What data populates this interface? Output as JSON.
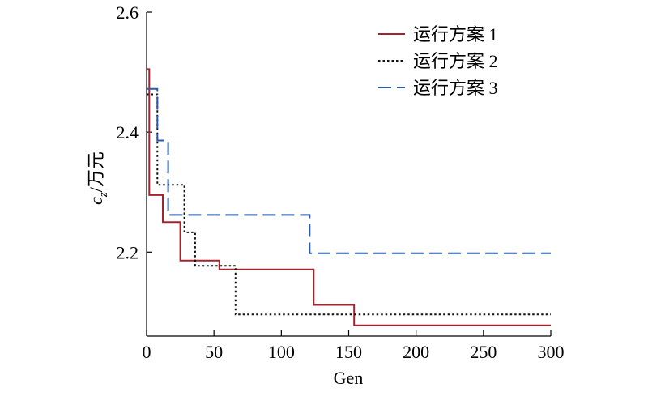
{
  "chart_data": {
    "type": "line",
    "xlabel": "Gen",
    "ylabel": "c_z/万元",
    "ylabel_main": "c",
    "ylabel_sub": "z",
    "ylabel_rest": "/万元",
    "xlim": [
      0,
      300
    ],
    "ylim": [
      2.06,
      2.6
    ],
    "xticks": [
      0,
      50,
      100,
      150,
      200,
      250,
      300
    ],
    "yticks": [
      2.2,
      2.4,
      2.6
    ],
    "xtick_labels": [
      "0",
      "50",
      "100",
      "150",
      "200",
      "250",
      "300"
    ],
    "ytick_labels": [
      "2.2",
      "2.4",
      "2.6"
    ],
    "grid": false,
    "legend_position": "top-right",
    "series": [
      {
        "name": "运行方案 1",
        "color": "#a3242c",
        "dash": "solid",
        "step_points": [
          [
            0,
            2.505
          ],
          [
            2,
            2.295
          ],
          [
            12,
            2.25
          ],
          [
            25,
            2.186
          ],
          [
            54,
            2.171
          ],
          [
            124,
            2.112
          ],
          [
            154,
            2.078
          ],
          [
            300,
            2.078
          ]
        ]
      },
      {
        "name": "运行方案 2",
        "color": "#111111",
        "dash": "dotted",
        "step_points": [
          [
            0,
            2.463
          ],
          [
            8,
            2.312
          ],
          [
            28,
            2.233
          ],
          [
            36,
            2.177
          ],
          [
            66,
            2.096
          ],
          [
            300,
            2.096
          ]
        ]
      },
      {
        "name": "运行方案 3",
        "color": "#2b5aa6",
        "dash": "dashed",
        "step_points": [
          [
            0,
            2.472
          ],
          [
            8,
            2.386
          ],
          [
            16,
            2.262
          ],
          [
            121,
            2.198
          ],
          [
            300,
            2.198
          ]
        ]
      }
    ]
  }
}
